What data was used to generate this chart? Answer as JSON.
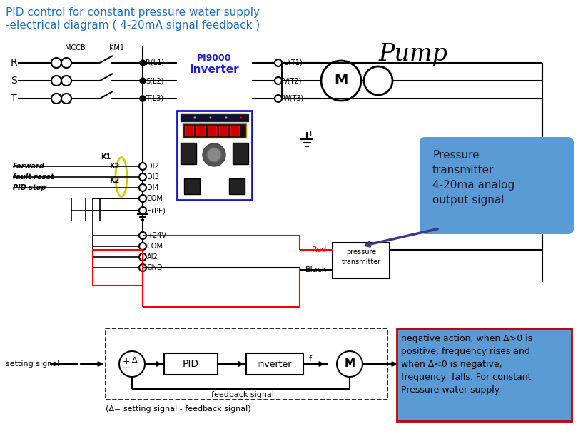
{
  "title_line1": "PID control for constant pressure water supply",
  "title_line2": "-electrical diagram ( 4-20mA signal feedback )",
  "title_color": "#1f6fbf",
  "title_fontsize": 11,
  "bg_color": "#ffffff",
  "pump_text": "Pump",
  "callout_text": "Pressure\ntransmitter\n4-20ma analog\noutput signal",
  "callout_bg": "#5b9bd5",
  "callout_text_color": "#1a1a2e",
  "note_text": "negative action, when Δ>0 is\npositive, frequency rises and\nwhen Δ<0 is negative,\nfrequency  falls. For constant\nPressure water supply.",
  "note_bg": "#5b9bd5",
  "note_border": "#c00000",
  "inverter_text1": "PI9000",
  "inverter_text2": "Inverter",
  "inverter_color": "#1f1fcc",
  "bottom_text1": "setting signal",
  "bottom_text2": "feedback signal",
  "bottom_text3": "(Δ= setting signal - feedback signal)"
}
